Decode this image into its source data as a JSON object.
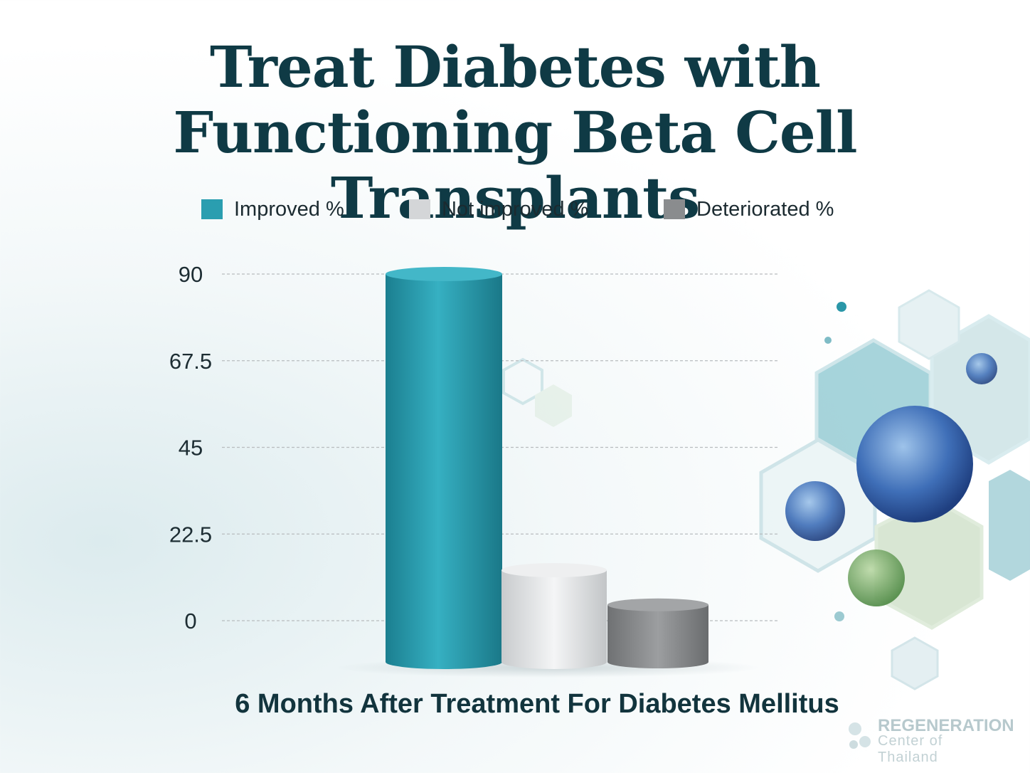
{
  "colors": {
    "title": "#0f3a45",
    "improved": "#2a9eb0",
    "not_improved": "#d4d6d8",
    "deteriorated": "#8a8c8e",
    "grid": "#b8bcbe"
  },
  "icons": [
    "hexagon-cell-icon",
    "brand-logo-icon"
  ],
  "branding": {
    "line1": "REGENERATION",
    "line2": "Center of Thailand"
  },
  "chart_data": {
    "type": "bar",
    "title": "Treat Diabetes with Functioning Beta Cell Transplants",
    "title_lines": [
      "Treat Diabetes with",
      "Functioning Beta Cell Transplants"
    ],
    "xlabel": "6 Months After Treatment For Diabetes Mellitus",
    "ylabel": "",
    "ylim": [
      0,
      90
    ],
    "yticks": [
      "0",
      "22.5",
      "45",
      "67.5",
      "90"
    ],
    "yticks_values": [
      0,
      22.5,
      45,
      67.5,
      90
    ],
    "grid": true,
    "legend_placement": "top",
    "categories": [
      "6 Months After Treatment For Diabetes Mellitus"
    ],
    "series": [
      {
        "name": "Improved %",
        "values": [
          90
        ]
      },
      {
        "name": "Not improved %",
        "values": [
          12
        ]
      },
      {
        "name": "Deteriorated %",
        "values": [
          3
        ]
      }
    ]
  }
}
